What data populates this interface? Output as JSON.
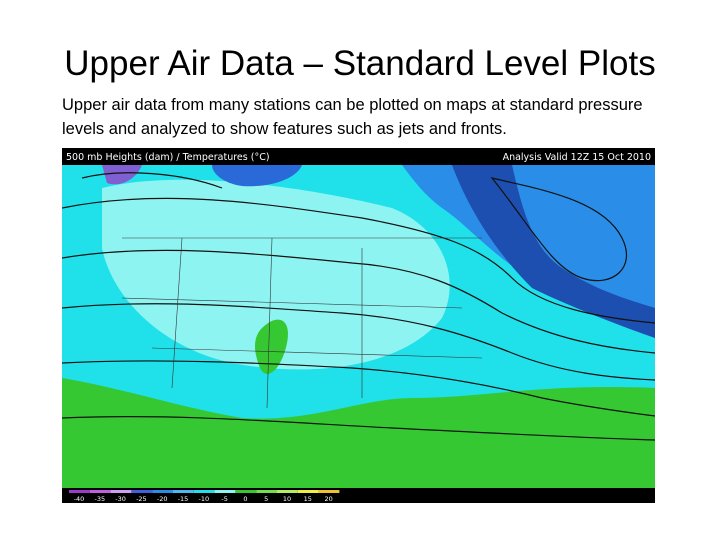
{
  "slide": {
    "title": "Upper Air Data – Standard Level Plots",
    "body": "Upper air data from many stations can be plotted on maps at standard pressure levels and analyzed to show features such as jets and fronts.",
    "map": {
      "header_left": "500 mb Heights (dam) / Temperatures (°C)",
      "header_right": "Analysis Valid 12Z 15 Oct 2010",
      "colorbar_labels": [
        "-40",
        "-35",
        "-30",
        "-25",
        "-20",
        "-15",
        "-10",
        "-5",
        "0",
        "5",
        "10",
        "15",
        "20"
      ]
    }
  }
}
